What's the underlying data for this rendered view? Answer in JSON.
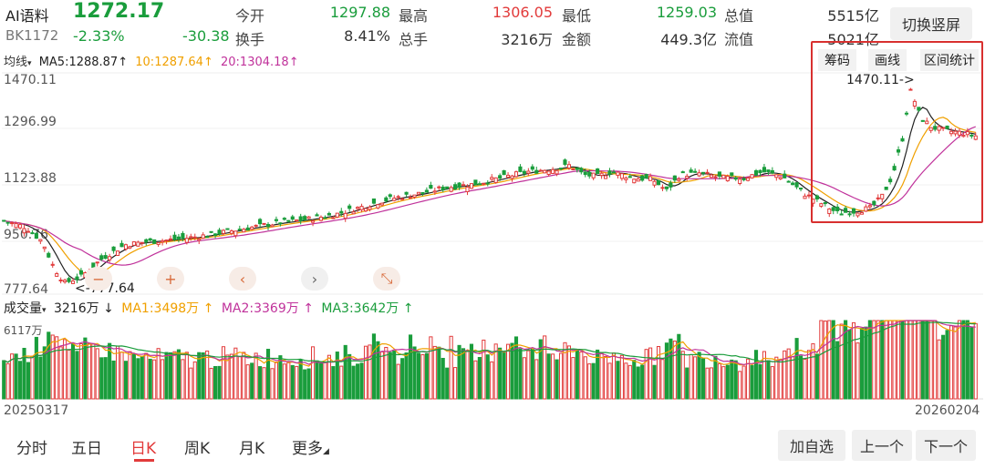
{
  "stock": {
    "name": "AI语料",
    "code": "BK1172",
    "price": "1272.17",
    "change_pct": "-2.33%",
    "change": "-30.38"
  },
  "stats": {
    "open_label": "今开",
    "open": "1297.88",
    "high_label": "最高",
    "high": "1306.05",
    "low_label": "最低",
    "low": "1259.03",
    "total_value_label": "总值",
    "total_value": "5515亿",
    "turnover_label": "换手",
    "turnover": "8.41%",
    "total_hand_label": "总手",
    "total_hand": "3216万",
    "amount_label": "金额",
    "amount": "449.3亿",
    "float_value_label": "流值",
    "float_value": "5021亿"
  },
  "switch_button": "切换竖屏",
  "indicators": {
    "ma_type": "均线",
    "ma5": "MA5:1288.87",
    "ma10": "10:1287.64",
    "ma20": "20:1304.18",
    "arrow": "↑"
  },
  "tools": {
    "chip": "筹码",
    "draw": "画线",
    "range": "区间统计"
  },
  "price_axis": [
    "1470.11",
    "1296.99",
    "1123.88",
    "950.76",
    "777.64"
  ],
  "max_marker": "1470.11->",
  "min_marker": "<-777.64",
  "volume": {
    "label": "成交量",
    "value": "3216万",
    "down_arrow": "↓",
    "ma1": "MA1:3498万",
    "ma2": "MA2:3369万",
    "ma3": "MA3:3642万",
    "up_arrow": "↑",
    "max": "6117万"
  },
  "dates": {
    "start": "20250317",
    "end": "20260204"
  },
  "nav_icons": [
    "zoom-out-icon",
    "zoom-in-icon",
    "pan-left-icon",
    "pan-right-icon",
    "shrink-icon"
  ],
  "tabs": [
    "分时",
    "五日",
    "日K",
    "周K",
    "月K",
    "更多"
  ],
  "active_tab": "日K",
  "bottom_buttons": {
    "add_fav": "加自选",
    "prev": "上一个",
    "next": "下一个"
  },
  "colors": {
    "up": "#e23b3b",
    "down": "#1a9d3c",
    "ma5": "#222222",
    "ma10": "#f0a000",
    "ma20": "#c0329b",
    "vol_ma1": "#f0a000",
    "vol_ma2": "#c0329b",
    "vol_ma3": "#1a9d3c"
  },
  "chart_data": {
    "type": "candlestick",
    "title": "",
    "y_range": [
      777.64,
      1470.11
    ],
    "close_path_approx": [
      [
        0,
        1005
      ],
      [
        8,
        985
      ],
      [
        14,
        940
      ],
      [
        18,
        860
      ],
      [
        22,
        810
      ],
      [
        28,
        830
      ],
      [
        36,
        890
      ],
      [
        44,
        930
      ],
      [
        52,
        940
      ],
      [
        60,
        945
      ],
      [
        70,
        955
      ],
      [
        80,
        970
      ],
      [
        90,
        985
      ],
      [
        100,
        1000
      ],
      [
        110,
        1010
      ],
      [
        120,
        1025
      ],
      [
        130,
        1050
      ],
      [
        140,
        1075
      ],
      [
        150,
        1090
      ],
      [
        160,
        1110
      ],
      [
        170,
        1120
      ],
      [
        180,
        1140
      ],
      [
        190,
        1160
      ],
      [
        200,
        1170
      ],
      [
        205,
        1180
      ],
      [
        210,
        1150
      ],
      [
        215,
        1145
      ],
      [
        220,
        1160
      ],
      [
        228,
        1140
      ],
      [
        235,
        1135
      ],
      [
        240,
        1100
      ],
      [
        245,
        1150
      ],
      [
        252,
        1155
      ],
      [
        260,
        1140
      ],
      [
        268,
        1140
      ],
      [
        275,
        1160
      ],
      [
        282,
        1145
      ],
      [
        290,
        1090
      ],
      [
        296,
        1060
      ],
      [
        302,
        1030
      ],
      [
        308,
        1035
      ],
      [
        314,
        1045
      ],
      [
        318,
        1080
      ],
      [
        322,
        1150
      ],
      [
        326,
        1280
      ],
      [
        328,
        1420
      ],
      [
        330,
        1380
      ],
      [
        332,
        1330
      ],
      [
        336,
        1300
      ],
      [
        340,
        1290
      ],
      [
        344,
        1285
      ],
      [
        348,
        1280
      ],
      [
        352,
        1272
      ]
    ]
  }
}
